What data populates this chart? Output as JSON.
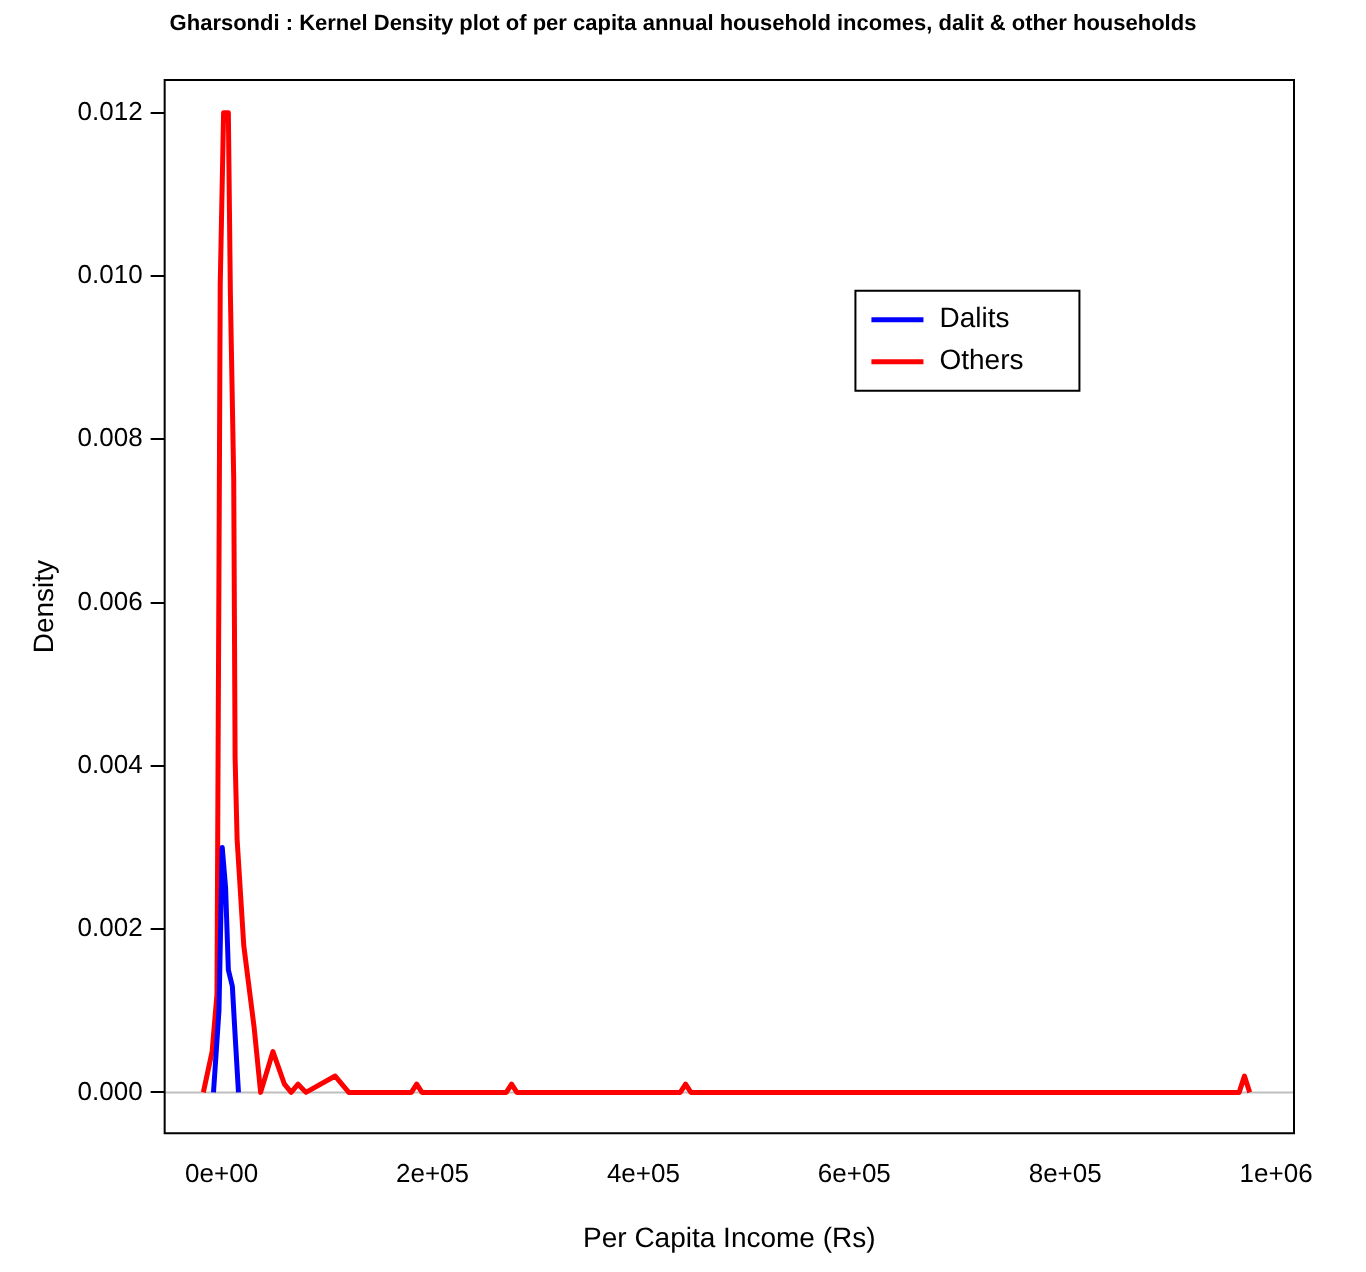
{
  "chart_data": {
    "type": "line",
    "title": "Gharsondi : Kernel Density plot of per capita annual household incomes, dalit & other households",
    "xlabel": "Per Capita Income (Rs)",
    "ylabel": "Density",
    "xlim": [
      -54000,
      1017000
    ],
    "ylim": [
      -0.0005,
      0.0124
    ],
    "xticks": [
      {
        "value": 0,
        "label": "0e+00"
      },
      {
        "value": 200000,
        "label": "2e+05"
      },
      {
        "value": 400000,
        "label": "4e+05"
      },
      {
        "value": 600000,
        "label": "6e+05"
      },
      {
        "value": 800000,
        "label": "8e+05"
      },
      {
        "value": 1000000,
        "label": "1e+06"
      }
    ],
    "yticks": [
      {
        "value": 0,
        "label": "0.000"
      },
      {
        "value": 0.002,
        "label": "0.002"
      },
      {
        "value": 0.004,
        "label": "0.004"
      },
      {
        "value": 0.006,
        "label": "0.006"
      },
      {
        "value": 0.008,
        "label": "0.008"
      },
      {
        "value": 0.01,
        "label": "0.010"
      },
      {
        "value": 0.012,
        "label": "0.012"
      }
    ],
    "grid": false,
    "legend": "top right",
    "marker": "none",
    "line_style": "solid",
    "ref_lines": [
      {
        "axis": "y",
        "value": 0,
        "color": "#bebebe"
      }
    ],
    "series": [
      {
        "name": "Dalits",
        "color": "#0000ff",
        "x": [
          -7700,
          -2500,
          600,
          3800,
          6400,
          10200,
          12800,
          16000
        ],
        "values": [
          0,
          0.001,
          0.003,
          0.0025,
          0.0015,
          0.0013,
          0.0007,
          0
        ]
      },
      {
        "name": "Others",
        "color": "#ff0000",
        "x": [
          -17300,
          -9000,
          -4400,
          -2500,
          -1300,
          1900,
          6400,
          8300,
          11500,
          12800,
          14700,
          21000,
          30800,
          37000,
          48700,
          59600,
          66000,
          72500,
          80000,
          107700,
          120600,
          180000,
          185000,
          190000,
          270000,
          275000,
          280000,
          435000,
          440000,
          445000,
          965000,
          970000,
          975000
        ],
        "values": [
          0,
          0.0005,
          0.0012,
          0.0064,
          0.0099,
          0.012,
          0.012,
          0.0098,
          0.0075,
          0.0041,
          0.0031,
          0.0018,
          0.0008,
          0,
          0.0005,
          0.0001,
          0,
          0.0001,
          0,
          0.0002,
          0,
          0,
          0.0001,
          0,
          0,
          0.0001,
          0,
          0,
          0.0001,
          0,
          0,
          0.0002,
          0
        ]
      }
    ]
  }
}
